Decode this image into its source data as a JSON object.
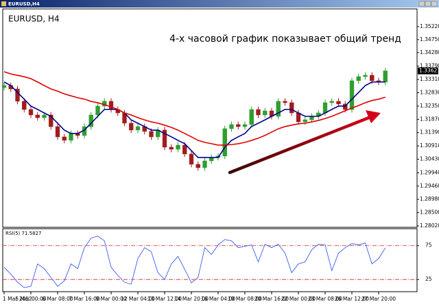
{
  "window": {
    "title": "EURUSD,H4"
  },
  "chart_data": [
    {
      "type": "candlestick",
      "title": "EURUSD, H4",
      "annotation": "4-х часовой график показывает общий тренд",
      "categories": [
        "1 Mar 2012",
        null,
        null,
        null,
        "5 Mar 00:00",
        null,
        null,
        null,
        "6 Mar 08:00",
        null,
        null,
        null,
        "7 Mar 16:00",
        null,
        null,
        null,
        "9 Mar 00:00",
        null,
        null,
        null,
        "12 Mar 04:00",
        null,
        null,
        null,
        "13 Mar 12:00",
        null,
        null,
        null,
        "14 Mar 20:00",
        null,
        null,
        null,
        "16 Mar 04:00",
        null,
        null,
        null,
        "19 Mar 08:00",
        null,
        null,
        null,
        "20 Mar 16:00",
        null,
        null,
        null,
        "22 Mar 00:00",
        null,
        null,
        null,
        "23 Mar 08:00",
        null,
        null,
        null,
        "26 Mar 12:00",
        null,
        null,
        null,
        "27 Mar 20:00",
        null
      ],
      "open": [
        1.3302,
        1.33092,
        1.32968,
        1.32523,
        1.32226,
        1.32028,
        1.31929,
        1.32028,
        1.31607,
        1.31236,
        1.31113,
        1.3136,
        1.31286,
        1.31607,
        1.32028,
        1.3235,
        1.32523,
        1.32226,
        1.32102,
        1.31731,
        1.31484,
        1.31607,
        1.31434,
        1.31236,
        1.31484,
        1.30865,
        1.30791,
        1.30939,
        1.30618,
        1.30247,
        1.30123,
        1.3037,
        1.30494,
        1.30544,
        1.31533,
        1.31682,
        1.31607,
        1.31682,
        1.32226,
        1.32028,
        1.32176,
        1.31978,
        1.32523,
        1.32473,
        1.32102,
        1.31781,
        1.31855,
        1.31978,
        1.32102,
        1.32473,
        1.32523,
        1.32424,
        1.32226,
        1.33265,
        1.33413,
        1.33463,
        1.33265,
        1.33215
      ],
      "high": [
        1.33202,
        1.33202,
        1.33078,
        1.32633,
        1.32336,
        1.32138,
        1.32138,
        1.32138,
        1.31717,
        1.31346,
        1.3147,
        1.3147,
        1.31717,
        1.32138,
        1.3246,
        1.32633,
        1.32633,
        1.32336,
        1.32212,
        1.31841,
        1.31717,
        1.31717,
        1.31544,
        1.31594,
        1.31594,
        1.30975,
        1.31049,
        1.31049,
        1.30728,
        1.30357,
        1.3048,
        1.30604,
        1.30654,
        1.31643,
        1.31792,
        1.31792,
        1.31792,
        1.32336,
        1.32336,
        1.32286,
        1.32286,
        1.32633,
        1.32633,
        1.32583,
        1.32212,
        1.31965,
        1.32088,
        1.32212,
        1.32583,
        1.32633,
        1.32633,
        1.32534,
        1.33375,
        1.33523,
        1.33573,
        1.33573,
        1.33375,
        1.33731
      ],
      "low": [
        1.3291,
        1.32858,
        1.32413,
        1.32116,
        1.31918,
        1.31819,
        1.31819,
        1.31497,
        1.31126,
        1.31003,
        1.31003,
        1.31176,
        1.31176,
        1.31497,
        1.31918,
        1.3224,
        1.32116,
        1.31992,
        1.31621,
        1.31374,
        1.31374,
        1.31324,
        1.31126,
        1.31126,
        1.30755,
        1.30681,
        1.30681,
        1.30508,
        1.30137,
        1.30013,
        1.30013,
        1.3026,
        1.30384,
        1.30434,
        1.31423,
        1.31497,
        1.31497,
        1.31572,
        1.31918,
        1.31918,
        1.31868,
        1.31868,
        1.32363,
        1.31992,
        1.31671,
        1.31671,
        1.31745,
        1.31868,
        1.31992,
        1.32363,
        1.32314,
        1.32116,
        1.32116,
        1.33155,
        1.33303,
        1.33155,
        1.33105,
        1.33105
      ],
      "close": [
        1.33092,
        1.32968,
        1.32523,
        1.32226,
        1.32028,
        1.31929,
        1.32028,
        1.31607,
        1.31236,
        1.31113,
        1.3136,
        1.31286,
        1.31607,
        1.32028,
        1.3235,
        1.32523,
        1.32226,
        1.32102,
        1.31731,
        1.31484,
        1.31607,
        1.31434,
        1.31236,
        1.31484,
        1.30865,
        1.30791,
        1.30939,
        1.30618,
        1.30247,
        1.30123,
        1.3037,
        1.30494,
        1.30544,
        1.31533,
        1.31682,
        1.31607,
        1.31682,
        1.32226,
        1.32028,
        1.32176,
        1.31978,
        1.32523,
        1.32473,
        1.32102,
        1.31781,
        1.31855,
        1.31978,
        1.32102,
        1.32473,
        1.32523,
        1.32424,
        1.32226,
        1.33265,
        1.33413,
        1.33463,
        1.33265,
        1.33215,
        1.33621
      ],
      "up_color": "#2f9e2f",
      "down_color": "#a11c1c",
      "series": [
        {
          "color": "#00008b",
          "values": [
            1.3322,
            1.3309,
            1.3284,
            1.326,
            1.3235,
            1.3223,
            1.321,
            1.3198,
            1.3173,
            1.3148,
            1.3136,
            1.3136,
            1.3148,
            1.3173,
            1.3198,
            1.3223,
            1.3223,
            1.3223,
            1.321,
            1.3185,
            1.3173,
            1.3161,
            1.3148,
            1.3148,
            1.3136,
            1.3124,
            1.3111,
            1.3099,
            1.3074,
            1.3049,
            1.3049,
            1.3049,
            1.3049,
            1.3086,
            1.3111,
            1.3124,
            1.3136,
            1.3161,
            1.3173,
            1.3185,
            1.3198,
            1.321,
            1.3223,
            1.3223,
            1.321,
            1.3198,
            1.3198,
            1.3198,
            1.321,
            1.3223,
            1.3235,
            1.3235,
            1.326,
            1.3284,
            1.3309,
            1.3322,
            1.3322,
            1.3322
          ]
        },
        {
          "color": "#e00000",
          "values": [
            1.3359,
            1.3351,
            1.3346,
            1.3341,
            1.3334,
            1.3322,
            1.3309,
            1.3297,
            1.3289,
            1.3279,
            1.3272,
            1.3265,
            1.326,
            1.3252,
            1.3247,
            1.324,
            1.3232,
            1.3223,
            1.321,
            1.3203,
            1.3193,
            1.3185,
            1.3178,
            1.3173,
            1.3166,
            1.3158,
            1.3148,
            1.3136,
            1.3124,
            1.3111,
            1.3104,
            1.3099,
            1.3094,
            1.3094,
            1.3096,
            1.3099,
            1.3104,
            1.3111,
            1.3119,
            1.3129,
            1.3141,
            1.3153,
            1.3161,
            1.3166,
            1.3171,
            1.3173,
            1.3178,
            1.3183,
            1.319,
            1.3198,
            1.3208,
            1.3218,
            1.3228,
            1.3237,
            1.3247,
            1.3255,
            1.326,
            1.3267
          ]
        }
      ],
      "last_price": 1.33621,
      "ylim": [
        1.2797,
        1.3586
      ],
      "yticks": [
        {
          "value": 1.2802,
          "label": "1.28020"
        },
        {
          "value": 1.285,
          "label": "1.28500"
        },
        {
          "value": 1.2898,
          "label": "1.28980"
        },
        {
          "value": 1.2946,
          "label": "1.29460"
        },
        {
          "value": 1.2994,
          "label": "1.29940"
        },
        {
          "value": 1.3043,
          "label": "1.30430"
        },
        {
          "value": 1.3091,
          "label": "1.30910"
        },
        {
          "value": 1.3139,
          "label": "1.31390"
        },
        {
          "value": 1.3187,
          "label": "1.31870"
        },
        {
          "value": 1.3235,
          "label": "1.32350"
        },
        {
          "value": 1.3283,
          "label": "1.32830"
        },
        {
          "value": 1.3331,
          "label": "1.33310"
        },
        {
          "value": 1.3379,
          "label": "1.33790"
        },
        {
          "value": 1.3428,
          "label": "1.34280"
        },
        {
          "value": 1.3475,
          "label": "1.34750"
        },
        {
          "value": 1.3522,
          "label": "1.35220"
        }
      ]
    },
    {
      "type": "line",
      "name": "RSI(5)",
      "color": "#3b5cf0",
      "level_color": "#d02020",
      "values": [
        43,
        33,
        21,
        13,
        15,
        48,
        41,
        28,
        15,
        23,
        48,
        41,
        72,
        86,
        89,
        82,
        43,
        31,
        21,
        18,
        56,
        72,
        66,
        35,
        25,
        48,
        59,
        40,
        20,
        28,
        72,
        62,
        76,
        84,
        82,
        72,
        74,
        76,
        51,
        77,
        72,
        77,
        64,
        35,
        48,
        51,
        69,
        77,
        76,
        38,
        64,
        72,
        78,
        76,
        79,
        48,
        56,
        71.5827
      ],
      "ylim": [
        7,
        100
      ],
      "yticks": [
        25,
        75
      ]
    }
  ]
}
